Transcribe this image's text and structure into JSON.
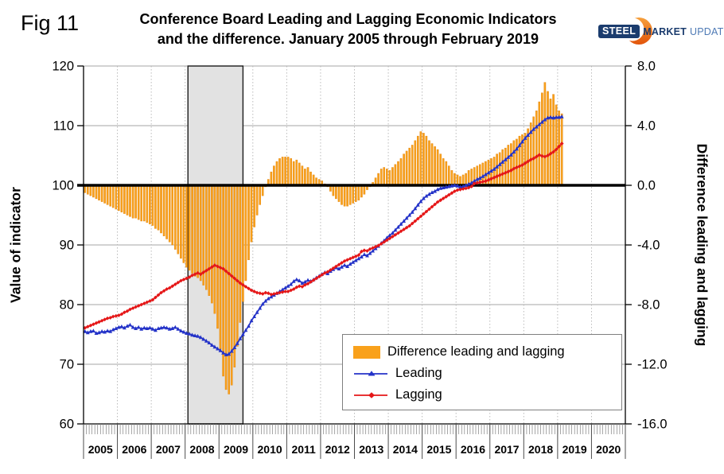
{
  "fig_label": "Fig 11",
  "header": {
    "title_line1": "Conference Board Leading and Lagging Economic Indicators",
    "title_line2": "and the difference. January 2005 through February 2019"
  },
  "logo": {
    "steel": "STEEL",
    "market": "MARKET",
    "update": "UPDATE",
    "navy": "#1B3C6E",
    "light_blue": "#4E7AB5",
    "orange_top": "#F6A03C",
    "orange_bottom": "#E2540A"
  },
  "chart_data": {
    "type": "bar+line combo",
    "x_monthly": {
      "start": "2005-01",
      "end": "2019-02",
      "points": 170
    },
    "categories_years": [
      "2005",
      "2006",
      "2007",
      "2008",
      "2009",
      "2010",
      "2011",
      "2012",
      "2013",
      "2014",
      "2015",
      "2016",
      "2017",
      "2018",
      "2019",
      "2020"
    ],
    "left_axis": {
      "label": "Value of indicator",
      "ticks": [
        "120",
        "110",
        "100",
        "90",
        "80",
        "70",
        "60"
      ],
      "tick_values": [
        120,
        110,
        100,
        90,
        80,
        70,
        60
      ],
      "range": [
        60,
        120
      ]
    },
    "right_axis": {
      "label": "Difference leading and lagging",
      "ticks": [
        "8.0",
        "4.0",
        "0.0",
        "-4.0",
        "-8.0",
        "-12.0",
        "-16.0"
      ],
      "tick_values": [
        8,
        4,
        0,
        -4,
        -8,
        -12,
        -16
      ],
      "range": [
        -16,
        8
      ]
    },
    "baseline_left_value": 100,
    "recession_band_months": [
      37,
      56.5
    ],
    "colors": {
      "bar": "#F9A11B",
      "bar_edge": "#E2820A",
      "leading": "#2433C8",
      "lagging": "#E51718",
      "grid": "#A6A6A6",
      "band_fill": "#E2E2E2"
    },
    "series": [
      {
        "name": "Difference leading and lagging",
        "type": "bar",
        "axis": "right",
        "color": "#F9A11B",
        "values": [
          -0.5,
          -0.6,
          -0.7,
          -0.8,
          -0.9,
          -1.0,
          -1.1,
          -1.2,
          -1.3,
          -1.4,
          -1.5,
          -1.6,
          -1.7,
          -1.8,
          -1.9,
          -2.0,
          -2.1,
          -2.2,
          -2.2,
          -2.3,
          -2.4,
          -2.4,
          -2.5,
          -2.6,
          -2.7,
          -2.9,
          -3.0,
          -3.2,
          -3.4,
          -3.6,
          -3.8,
          -4.0,
          -4.3,
          -4.6,
          -4.9,
          -5.2,
          -5.5,
          -5.7,
          -5.9,
          -6.1,
          -6.2,
          -6.4,
          -6.7,
          -7.0,
          -7.4,
          -7.9,
          -8.6,
          -9.6,
          -11.0,
          -12.8,
          -13.7,
          -14.0,
          -13.4,
          -12.2,
          -10.8,
          -9.2,
          -7.8,
          -6.4,
          -5.0,
          -3.8,
          -2.8,
          -2.0,
          -1.3,
          -0.7,
          -0.1,
          0.4,
          0.9,
          1.3,
          1.6,
          1.8,
          1.9,
          1.9,
          1.9,
          1.8,
          1.6,
          1.7,
          1.5,
          1.3,
          1.1,
          1.2,
          0.9,
          0.7,
          0.5,
          0.4,
          0.3,
          0.1,
          -0.1,
          -0.4,
          -0.7,
          -0.9,
          -1.1,
          -1.3,
          -1.4,
          -1.4,
          -1.3,
          -1.2,
          -1.1,
          -1.0,
          -0.8,
          -0.6,
          -0.3,
          -0.1,
          0.2,
          0.5,
          0.8,
          1.1,
          1.2,
          1.1,
          1.0,
          1.2,
          1.4,
          1.6,
          1.8,
          2.1,
          2.3,
          2.5,
          2.7,
          3.0,
          3.3,
          3.6,
          3.5,
          3.3,
          3.0,
          2.8,
          2.6,
          2.4,
          2.1,
          1.8,
          1.6,
          1.3,
          1.0,
          0.8,
          0.7,
          0.6,
          0.7,
          0.8,
          1.0,
          1.1,
          1.2,
          1.3,
          1.4,
          1.5,
          1.6,
          1.7,
          1.8,
          1.9,
          2.1,
          2.2,
          2.4,
          2.5,
          2.7,
          2.8,
          3.0,
          3.1,
          3.3,
          3.4,
          3.5,
          3.8,
          4.2,
          4.6,
          5.0,
          5.6,
          6.2,
          6.9,
          6.3,
          5.8,
          6.1,
          5.4,
          5.0,
          4.8
        ]
      },
      {
        "name": "Leading",
        "type": "line",
        "axis": "left",
        "color": "#2433C8",
        "marker": "triangle",
        "values": [
          75.5,
          75.3,
          75.5,
          75.6,
          75.2,
          75.3,
          75.5,
          75.4,
          75.6,
          75.5,
          75.8,
          76.0,
          76.2,
          76.3,
          76.1,
          76.4,
          76.6,
          76.2,
          76.0,
          76.2,
          75.9,
          76.1,
          76.0,
          76.1,
          75.9,
          75.7,
          76.0,
          76.1,
          76.2,
          76.1,
          75.9,
          76.0,
          76.2,
          75.9,
          75.6,
          75.4,
          75.2,
          75.1,
          74.9,
          74.8,
          74.7,
          74.5,
          74.2,
          73.9,
          73.6,
          73.2,
          72.9,
          72.6,
          72.3,
          71.9,
          71.6,
          71.7,
          72.2,
          72.8,
          73.5,
          74.3,
          75.0,
          75.7,
          76.4,
          77.3,
          78.0,
          78.7,
          79.4,
          80.1,
          80.6,
          81.0,
          81.3,
          81.6,
          81.9,
          82.2,
          82.5,
          82.8,
          83.1,
          83.4,
          83.9,
          84.2,
          84.0,
          83.6,
          83.8,
          84.1,
          83.9,
          84.2,
          84.5,
          84.8,
          85.1,
          85.4,
          85.2,
          85.6,
          85.9,
          86.2,
          86.0,
          86.3,
          86.6,
          86.4,
          86.8,
          87.1,
          87.4,
          87.7,
          88.0,
          88.4,
          88.2,
          88.6,
          89.0,
          89.4,
          89.8,
          90.3,
          90.7,
          91.2,
          91.6,
          92.0,
          92.5,
          93.0,
          93.5,
          94.0,
          94.5,
          95.0,
          95.5,
          96.1,
          96.7,
          97.3,
          97.8,
          98.2,
          98.5,
          98.8,
          99.0,
          99.3,
          99.5,
          99.6,
          99.7,
          99.8,
          99.9,
          100.0,
          99.9,
          99.7,
          99.8,
          100.0,
          100.2,
          100.4,
          100.7,
          101.0,
          101.2,
          101.5,
          101.8,
          102.1,
          102.4,
          102.7,
          103.1,
          103.5,
          103.9,
          104.3,
          104.7,
          105.1,
          105.6,
          106.1,
          106.7,
          107.3,
          107.9,
          108.4,
          108.9,
          109.4,
          109.8,
          110.2,
          110.6,
          111.0,
          111.3,
          111.4,
          111.3,
          111.4,
          111.4,
          111.5
        ]
      },
      {
        "name": "Lagging",
        "type": "line",
        "axis": "left",
        "color": "#E51718",
        "marker": "diamond",
        "values": [
          76.1,
          76.3,
          76.5,
          76.7,
          76.9,
          77.1,
          77.3,
          77.5,
          77.7,
          77.8,
          78.0,
          78.1,
          78.2,
          78.4,
          78.7,
          78.9,
          79.2,
          79.4,
          79.6,
          79.8,
          80.0,
          80.2,
          80.4,
          80.6,
          80.8,
          81.2,
          81.6,
          82.0,
          82.3,
          82.6,
          82.8,
          83.1,
          83.4,
          83.7,
          84.0,
          84.2,
          84.4,
          84.6,
          84.9,
          85.1,
          85.3,
          85.1,
          85.4,
          85.7,
          86.0,
          86.3,
          86.6,
          86.4,
          86.2,
          86.0,
          85.6,
          85.2,
          84.8,
          84.4,
          84.0,
          83.6,
          83.3,
          83.0,
          82.7,
          82.4,
          82.2,
          82.0,
          81.9,
          81.8,
          82.0,
          81.9,
          81.7,
          81.8,
          81.9,
          82.0,
          82.1,
          82.2,
          82.2,
          82.4,
          82.6,
          82.9,
          83.1,
          83.0,
          83.3,
          83.5,
          83.8,
          84.1,
          84.4,
          84.7,
          85.0,
          85.3,
          85.5,
          85.8,
          86.1,
          86.4,
          86.7,
          87.0,
          87.3,
          87.5,
          87.7,
          87.9,
          88.1,
          88.3,
          88.9,
          89.1,
          89.0,
          89.3,
          89.5,
          89.7,
          89.9,
          90.2,
          90.5,
          90.8,
          91.1,
          91.4,
          91.7,
          92.0,
          92.3,
          92.6,
          92.9,
          93.2,
          93.6,
          94.0,
          94.4,
          94.8,
          95.2,
          95.6,
          96.0,
          96.4,
          96.8,
          97.2,
          97.5,
          97.8,
          98.1,
          98.4,
          98.7,
          99.0,
          99.2,
          99.3,
          99.4,
          99.5,
          99.6,
          99.8,
          100.3,
          100.4,
          100.5,
          100.6,
          100.7,
          100.9,
          101.1,
          101.3,
          101.5,
          101.7,
          101.9,
          102.1,
          102.3,
          102.5,
          102.8,
          103.0,
          103.2,
          103.4,
          103.7,
          104.0,
          104.3,
          104.5,
          104.8,
          105.1,
          104.9,
          104.8,
          105.0,
          105.3,
          105.6,
          106.0,
          106.5,
          107.0
        ]
      }
    ],
    "legend": {
      "position": "inside bottom-right",
      "entries": [
        "Difference leading and lagging",
        "Leading",
        "Lagging"
      ]
    }
  }
}
